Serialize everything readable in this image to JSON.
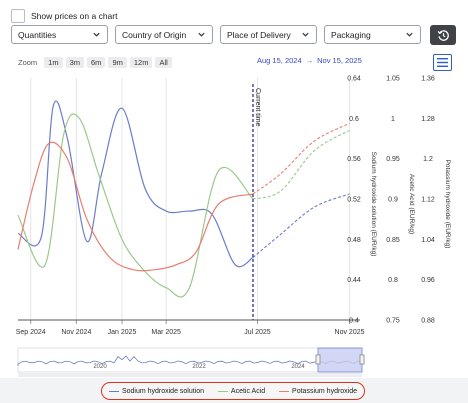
{
  "toolbar": {
    "show_prices_label": "Show prices on a chart",
    "dropdowns": [
      "Quantities",
      "Country of Origin",
      "Place of Delivery",
      "Packaging"
    ],
    "reset_icon": "history-reset-icon",
    "menu_icon": "hamburger-menu-icon"
  },
  "zoom": {
    "label": "Zoom",
    "options": [
      "1m",
      "3m",
      "6m",
      "9m",
      "12m",
      "All"
    ]
  },
  "date_range": {
    "from": "Aug 15, 2024",
    "arrow": "→",
    "to": "Nov 15, 2025"
  },
  "navigator": {
    "years": [
      "2020",
      "2022",
      "2024"
    ]
  },
  "chart_data": {
    "type": "line",
    "x_ticks": [
      "Sep 2024",
      "Nov 2024",
      "Jan 2025",
      "Mar 2025",
      "Jul 2025",
      "Nov 2025"
    ],
    "xlim": [
      "2024-08-15",
      "2025-11-15"
    ],
    "annotation": "Current time",
    "current_time": "2025-06-25",
    "axes": [
      {
        "id": "sodium",
        "label": "Sodium hydroxide solution (EUR/kg)",
        "ticks": [
          "0.64",
          "0.6",
          "0.56",
          "0.52",
          "0.48",
          "0.44",
          "0.4"
        ],
        "ylim": [
          0.4,
          0.64
        ]
      },
      {
        "id": "acetic",
        "label": "Acetic Acid (EUR/kg)",
        "ticks": [
          "1.05",
          "1",
          "0.95",
          "0.9",
          "0.85",
          "0.8",
          "0.75"
        ],
        "ylim": [
          0.75,
          1.05
        ]
      },
      {
        "id": "potassium",
        "label": "Potassium hydroxide (EUR/kg)",
        "ticks": [
          "1.36",
          "1.28",
          "1.2",
          "1.12",
          "1.04",
          "0.96",
          "0.88"
        ],
        "ylim": [
          0.88,
          1.36
        ]
      }
    ],
    "series": [
      {
        "name": "Sodium hydroxide solution",
        "axis": "sodium",
        "color": "#6c7cc9",
        "x": [
          "2024-08-15",
          "2024-09-15",
          "2024-10-01",
          "2024-10-20",
          "2024-11-15",
          "2024-12-05",
          "2025-01-01",
          "2025-02-01",
          "2025-03-01",
          "2025-04-01",
          "2025-05-01",
          "2025-06-01",
          "2025-06-25"
        ],
        "values": [
          0.486,
          0.482,
          0.612,
          0.58,
          0.478,
          0.546,
          0.61,
          0.53,
          0.508,
          0.508,
          0.505,
          0.455,
          0.462
        ],
        "forecast": {
          "x": [
            "2025-06-25",
            "2025-08-01",
            "2025-09-15",
            "2025-11-01"
          ],
          "values": [
            0.462,
            0.485,
            0.512,
            0.525
          ]
        }
      },
      {
        "name": "Acetic Acid",
        "axis": "acetic",
        "color": "#9bc98a",
        "x": [
          "2024-08-15",
          "2024-09-20",
          "2024-10-15",
          "2024-11-05",
          "2024-12-01",
          "2025-01-01",
          "2025-02-01",
          "2025-03-01",
          "2025-04-01",
          "2025-05-10",
          "2025-06-25"
        ],
        "values": [
          0.88,
          0.818,
          0.98,
          1.0,
          0.93,
          0.85,
          0.81,
          0.79,
          0.79,
          0.935,
          0.9
        ],
        "forecast": {
          "x": [
            "2025-06-25",
            "2025-08-01",
            "2025-09-15",
            "2025-11-01"
          ],
          "values": [
            0.9,
            0.91,
            0.96,
            0.985
          ]
        }
      },
      {
        "name": "Potassium hydroxide",
        "axis": "potassium",
        "color": "#e77e6e",
        "x": [
          "2024-08-15",
          "2024-09-05",
          "2024-09-25",
          "2024-10-20",
          "2024-11-15",
          "2024-12-15",
          "2025-01-15",
          "2025-02-15",
          "2025-03-15",
          "2025-04-10",
          "2025-05-10",
          "2025-06-25"
        ],
        "values": [
          1.02,
          1.15,
          1.23,
          1.2,
          1.08,
          1.005,
          0.98,
          0.98,
          0.99,
          1.015,
          1.11,
          1.13
        ],
        "forecast": {
          "x": [
            "2025-06-25",
            "2025-08-01",
            "2025-09-15",
            "2025-11-01"
          ],
          "values": [
            1.13,
            1.17,
            1.235,
            1.27
          ]
        }
      }
    ],
    "grid": "vertical",
    "legend_position": "bottom"
  }
}
